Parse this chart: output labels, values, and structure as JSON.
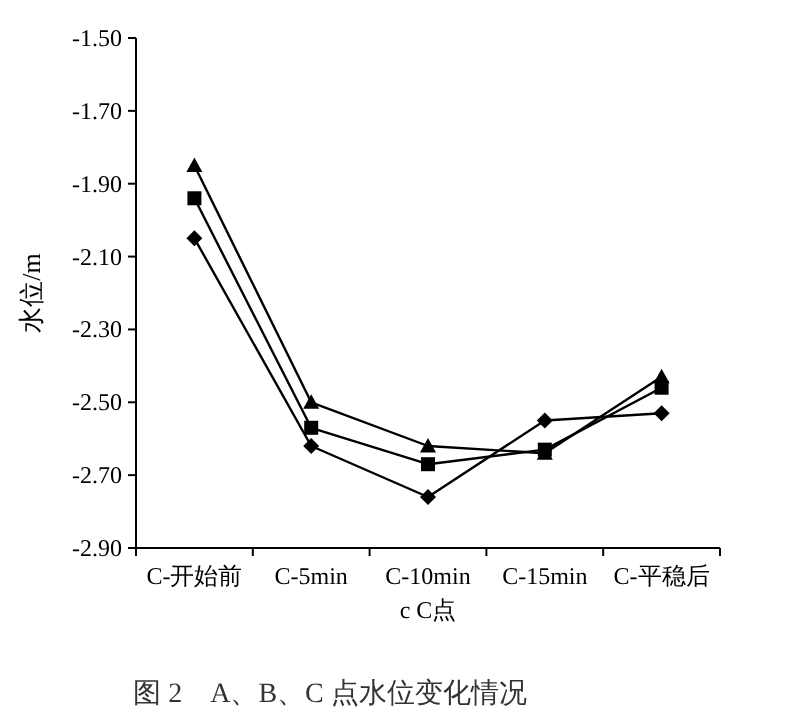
{
  "chart_data": {
    "type": "line",
    "title": "图 2　A、B、C 点水位变化情况",
    "xlabel": "c C点",
    "ylabel": "水位/m",
    "categories": [
      "C-开始前",
      "C-5min",
      "C-10min",
      "C-15min",
      "C-平稳后"
    ],
    "series": [
      {
        "color": "#000000",
        "marker": "triangle",
        "values": [
          -1.85,
          -2.5,
          -2.62,
          -2.64,
          -2.43
        ]
      },
      {
        "color": "#000000",
        "marker": "square",
        "values": [
          -1.94,
          -2.57,
          -2.67,
          -2.63,
          -2.46
        ]
      },
      {
        "color": "#000000",
        "marker": "diamond",
        "values": [
          -2.05,
          -2.62,
          -2.76,
          -2.55,
          -2.53
        ]
      }
    ],
    "ylim": [
      -2.9,
      -1.5
    ],
    "yticks": [
      {
        "value": -1.5,
        "label": "-1.50"
      },
      {
        "value": -1.7,
        "label": "-1.70"
      },
      {
        "value": -1.9,
        "label": "-1.90"
      },
      {
        "value": -2.1,
        "label": "-2.10"
      },
      {
        "value": -2.3,
        "label": "-2.30"
      },
      {
        "value": -2.5,
        "label": "-2.50"
      },
      {
        "value": -2.7,
        "label": "-2.70"
      },
      {
        "value": -2.9,
        "label": "-2.90"
      }
    ],
    "grid": false,
    "line_style": "solid"
  }
}
